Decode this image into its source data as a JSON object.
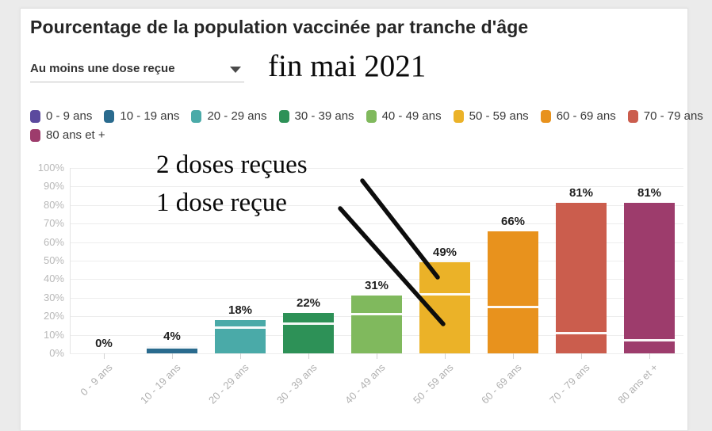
{
  "header": {
    "title": "Pourcentage de la population vaccinée par tranche d'âge"
  },
  "controls": {
    "dose_dropdown": {
      "value": "Au moins une dose reçue"
    }
  },
  "annotations": {
    "date_note": "fin mai 2021",
    "line_label_2doses": "2 doses reçues",
    "line_label_1dose": "1 dose reçue"
  },
  "legend": {
    "items": [
      {
        "label": "0 - 9 ans",
        "color": "#5b4a9e"
      },
      {
        "label": "10 - 19 ans",
        "color": "#2a6b8e"
      },
      {
        "label": "20 - 29 ans",
        "color": "#4aaaa8"
      },
      {
        "label": "30 - 39 ans",
        "color": "#2d9157"
      },
      {
        "label": "40 - 49 ans",
        "color": "#80b95d"
      },
      {
        "label": "50 - 59 ans",
        "color": "#ebb228"
      },
      {
        "label": "60 - 69 ans",
        "color": "#e8921d"
      },
      {
        "label": "70 - 79 ans",
        "color": "#cb5d4d"
      },
      {
        "label": "80 ans et +",
        "color": "#9d3c6c"
      }
    ]
  },
  "chart_data": {
    "type": "bar",
    "title": "Pourcentage de la population vaccinée par tranche d'âge",
    "categories": [
      "0 - 9 ans",
      "10 - 19 ans",
      "20 - 29 ans",
      "30 - 39 ans",
      "40 - 49 ans",
      "50 - 59 ans",
      "60 - 69 ans",
      "70 - 79 ans",
      "80 ans et +"
    ],
    "series": [
      {
        "name": "Au moins une dose reçue",
        "values": [
          0,
          4,
          18,
          22,
          31,
          49,
          66,
          81,
          81
        ]
      },
      {
        "name": "2 doses reçues (repère blanc)",
        "values": [
          0,
          3,
          14,
          16,
          21,
          32,
          25,
          11,
          7
        ]
      }
    ],
    "value_labels": [
      "0%",
      "4%",
      "18%",
      "22%",
      "31%",
      "49%",
      "66%",
      "81%",
      "81%"
    ],
    "bar_colors": [
      "#5b4a9e",
      "#2a6b8e",
      "#4aaaa8",
      "#2d9157",
      "#80b95d",
      "#ebb228",
      "#e8921d",
      "#cb5d4d",
      "#9d3c6c"
    ],
    "yticks": [
      "100%",
      "90%",
      "80%",
      "70%",
      "60%",
      "50%",
      "40%",
      "30%",
      "20%",
      "10%",
      "0%"
    ],
    "ylim": [
      0,
      100
    ],
    "grid": true,
    "legend_position": "top",
    "xlabel": "",
    "ylabel": ""
  }
}
